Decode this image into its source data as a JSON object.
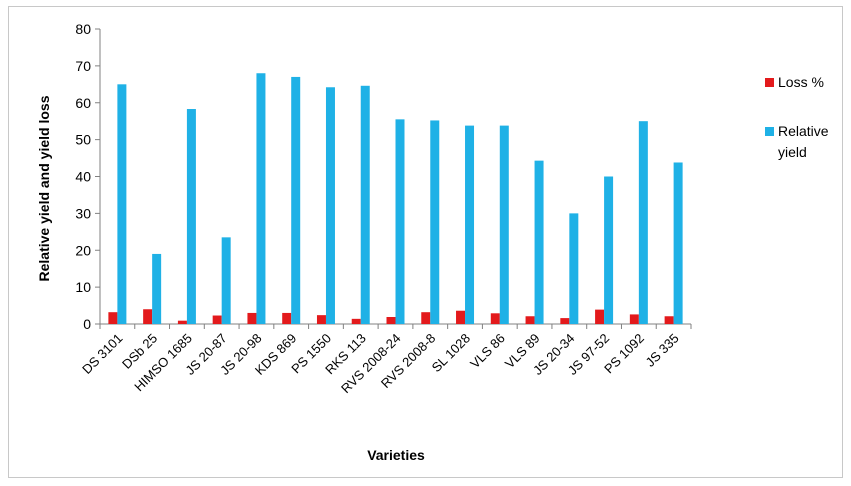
{
  "chart_data": {
    "type": "bar",
    "title": "",
    "xlabel": "Varieties",
    "ylabel": "Relative yield and yield loss",
    "ylim": [
      0,
      80
    ],
    "yticks": [
      0,
      10,
      20,
      30,
      40,
      50,
      60,
      70,
      80
    ],
    "grid": false,
    "legend_position": "right",
    "categories": [
      "DS 3101",
      "DSb 25",
      "HIMSO 1685",
      "JS 20-87",
      "JS 20-98",
      "KDS 869",
      "PS 1550",
      "RKS 113",
      "RVS 2008-24",
      "RVS 2008-8",
      "SL 1028",
      "VLS 86",
      "VLS 89",
      "JS 20-34",
      "JS 97-52",
      "PS 1092",
      "JS 335"
    ],
    "series": [
      {
        "name": "Loss %",
        "color": "#e31a1c",
        "values": [
          3.2,
          4.0,
          0.9,
          2.3,
          3.0,
          3.0,
          2.4,
          1.4,
          1.9,
          3.2,
          3.6,
          2.9,
          2.1,
          1.6,
          3.9,
          2.6,
          2.1
        ]
      },
      {
        "name": "Relative yield",
        "color": "#1fb1e6",
        "values": [
          65.0,
          19.0,
          58.3,
          23.5,
          68.0,
          67.0,
          64.2,
          64.6,
          55.5,
          55.2,
          53.8,
          53.8,
          44.3,
          30.0,
          40.0,
          55.0,
          43.8
        ]
      }
    ]
  }
}
